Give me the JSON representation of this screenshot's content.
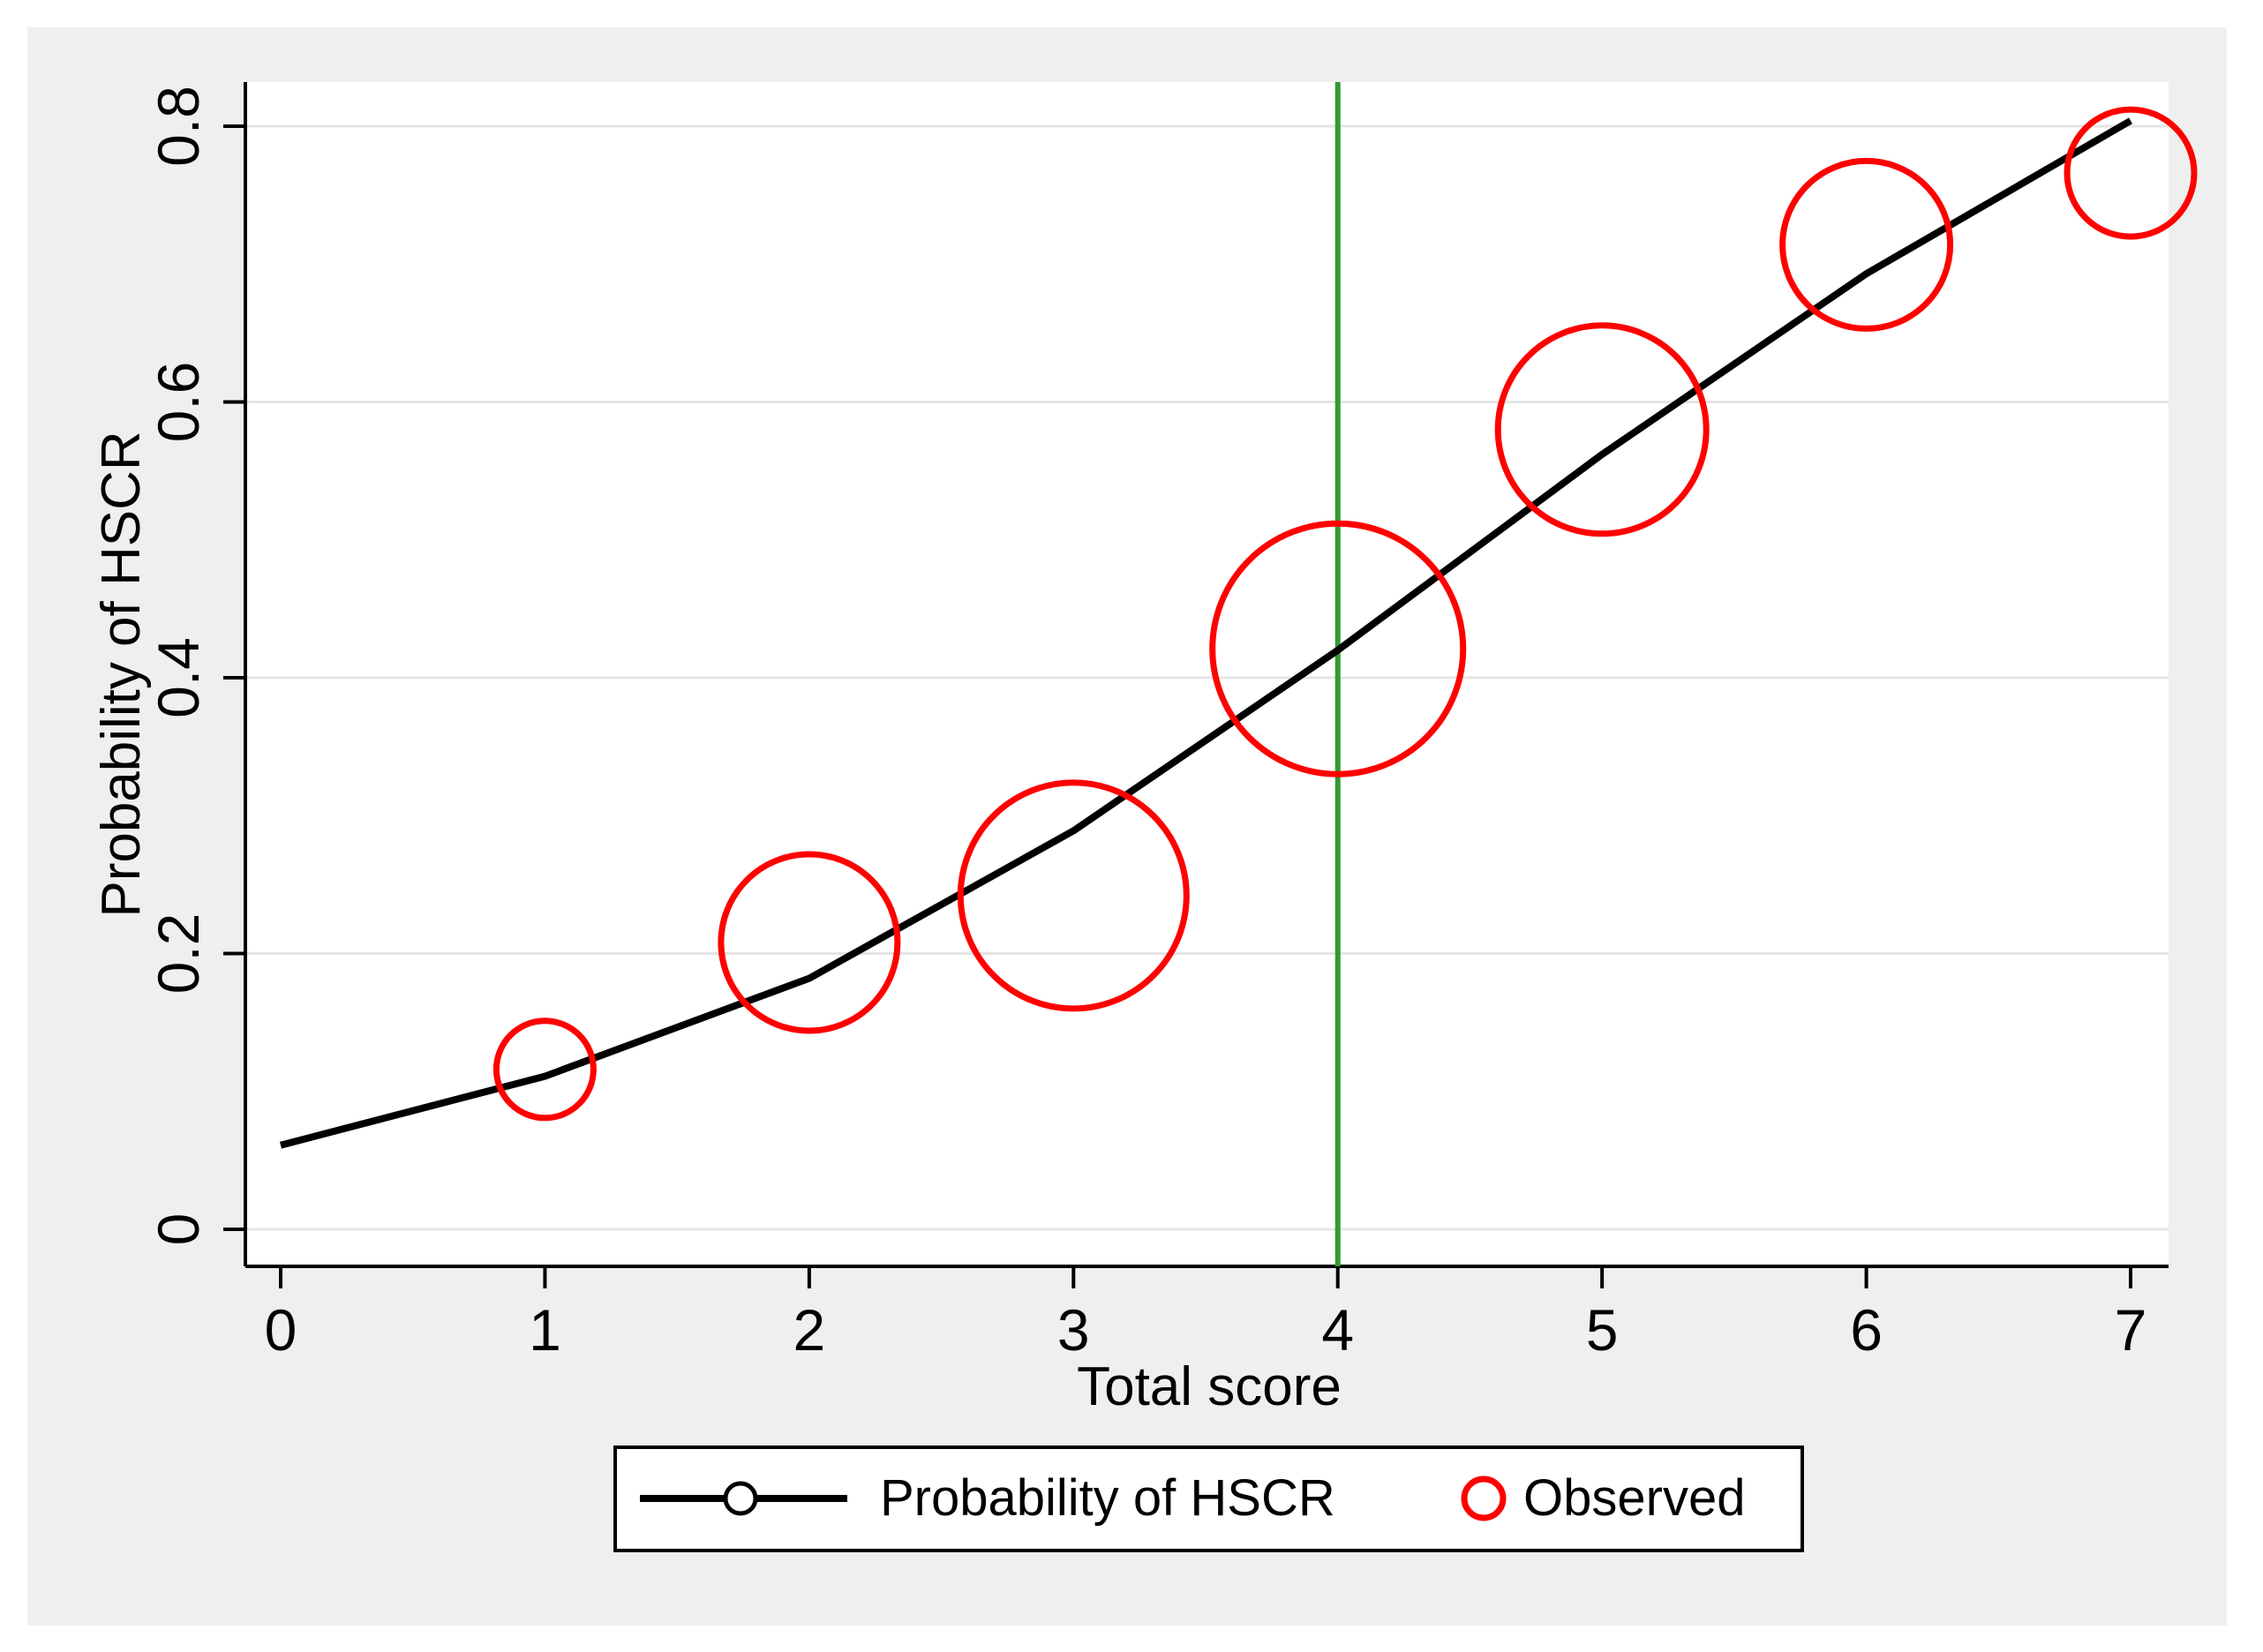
{
  "figure": {
    "page_background": "#ffffff",
    "panel_background": "#efefef",
    "plot_background": "#ffffff",
    "gridline_color": "#e4e4e4"
  },
  "chart_data": {
    "type": "line+scatter",
    "title": "",
    "xlabel": "Total score",
    "ylabel": "Probability of HSCR",
    "x_ticks": [
      0,
      1,
      2,
      3,
      4,
      5,
      6,
      7
    ],
    "x_tick_labels": [
      "0",
      "1",
      "2",
      "3",
      "4",
      "5",
      "6",
      "7"
    ],
    "y_ticks": [
      0,
      0.2,
      0.4,
      0.6,
      0.8
    ],
    "y_tick_labels": [
      "0",
      "0.2",
      "0.4",
      "0.6",
      "0.8"
    ],
    "xlim": [
      -0.13,
      7.14
    ],
    "ylim": [
      -0.027,
      0.832
    ],
    "grid": "horizontal",
    "series": [
      {
        "name": "Probability of HSCR",
        "type": "line",
        "color": "#000000",
        "x": [
          0,
          1,
          2,
          3,
          4,
          5,
          6,
          7
        ],
        "y": [
          0.061,
          0.111,
          0.182,
          0.289,
          0.42,
          0.562,
          0.693,
          0.804
        ]
      },
      {
        "name": "Observed",
        "type": "scatter-open-circle",
        "color": "#ff0000",
        "x": [
          1,
          2,
          3,
          4,
          5,
          6,
          7
        ],
        "y": [
          0.116,
          0.208,
          0.242,
          0.421,
          0.58,
          0.714,
          0.766
        ],
        "marker_radius_px": [
          55,
          100,
          128,
          142,
          118,
          95,
          72
        ]
      }
    ],
    "vline": {
      "x": 4,
      "color": "#339933"
    },
    "legend": {
      "position": "bottom",
      "entries": [
        {
          "label": "Probability of HSCR",
          "marker": "line-with-open-circle",
          "color": "#000000"
        },
        {
          "label": "Observed",
          "marker": "open-circle",
          "color": "#ff0000"
        }
      ]
    }
  }
}
